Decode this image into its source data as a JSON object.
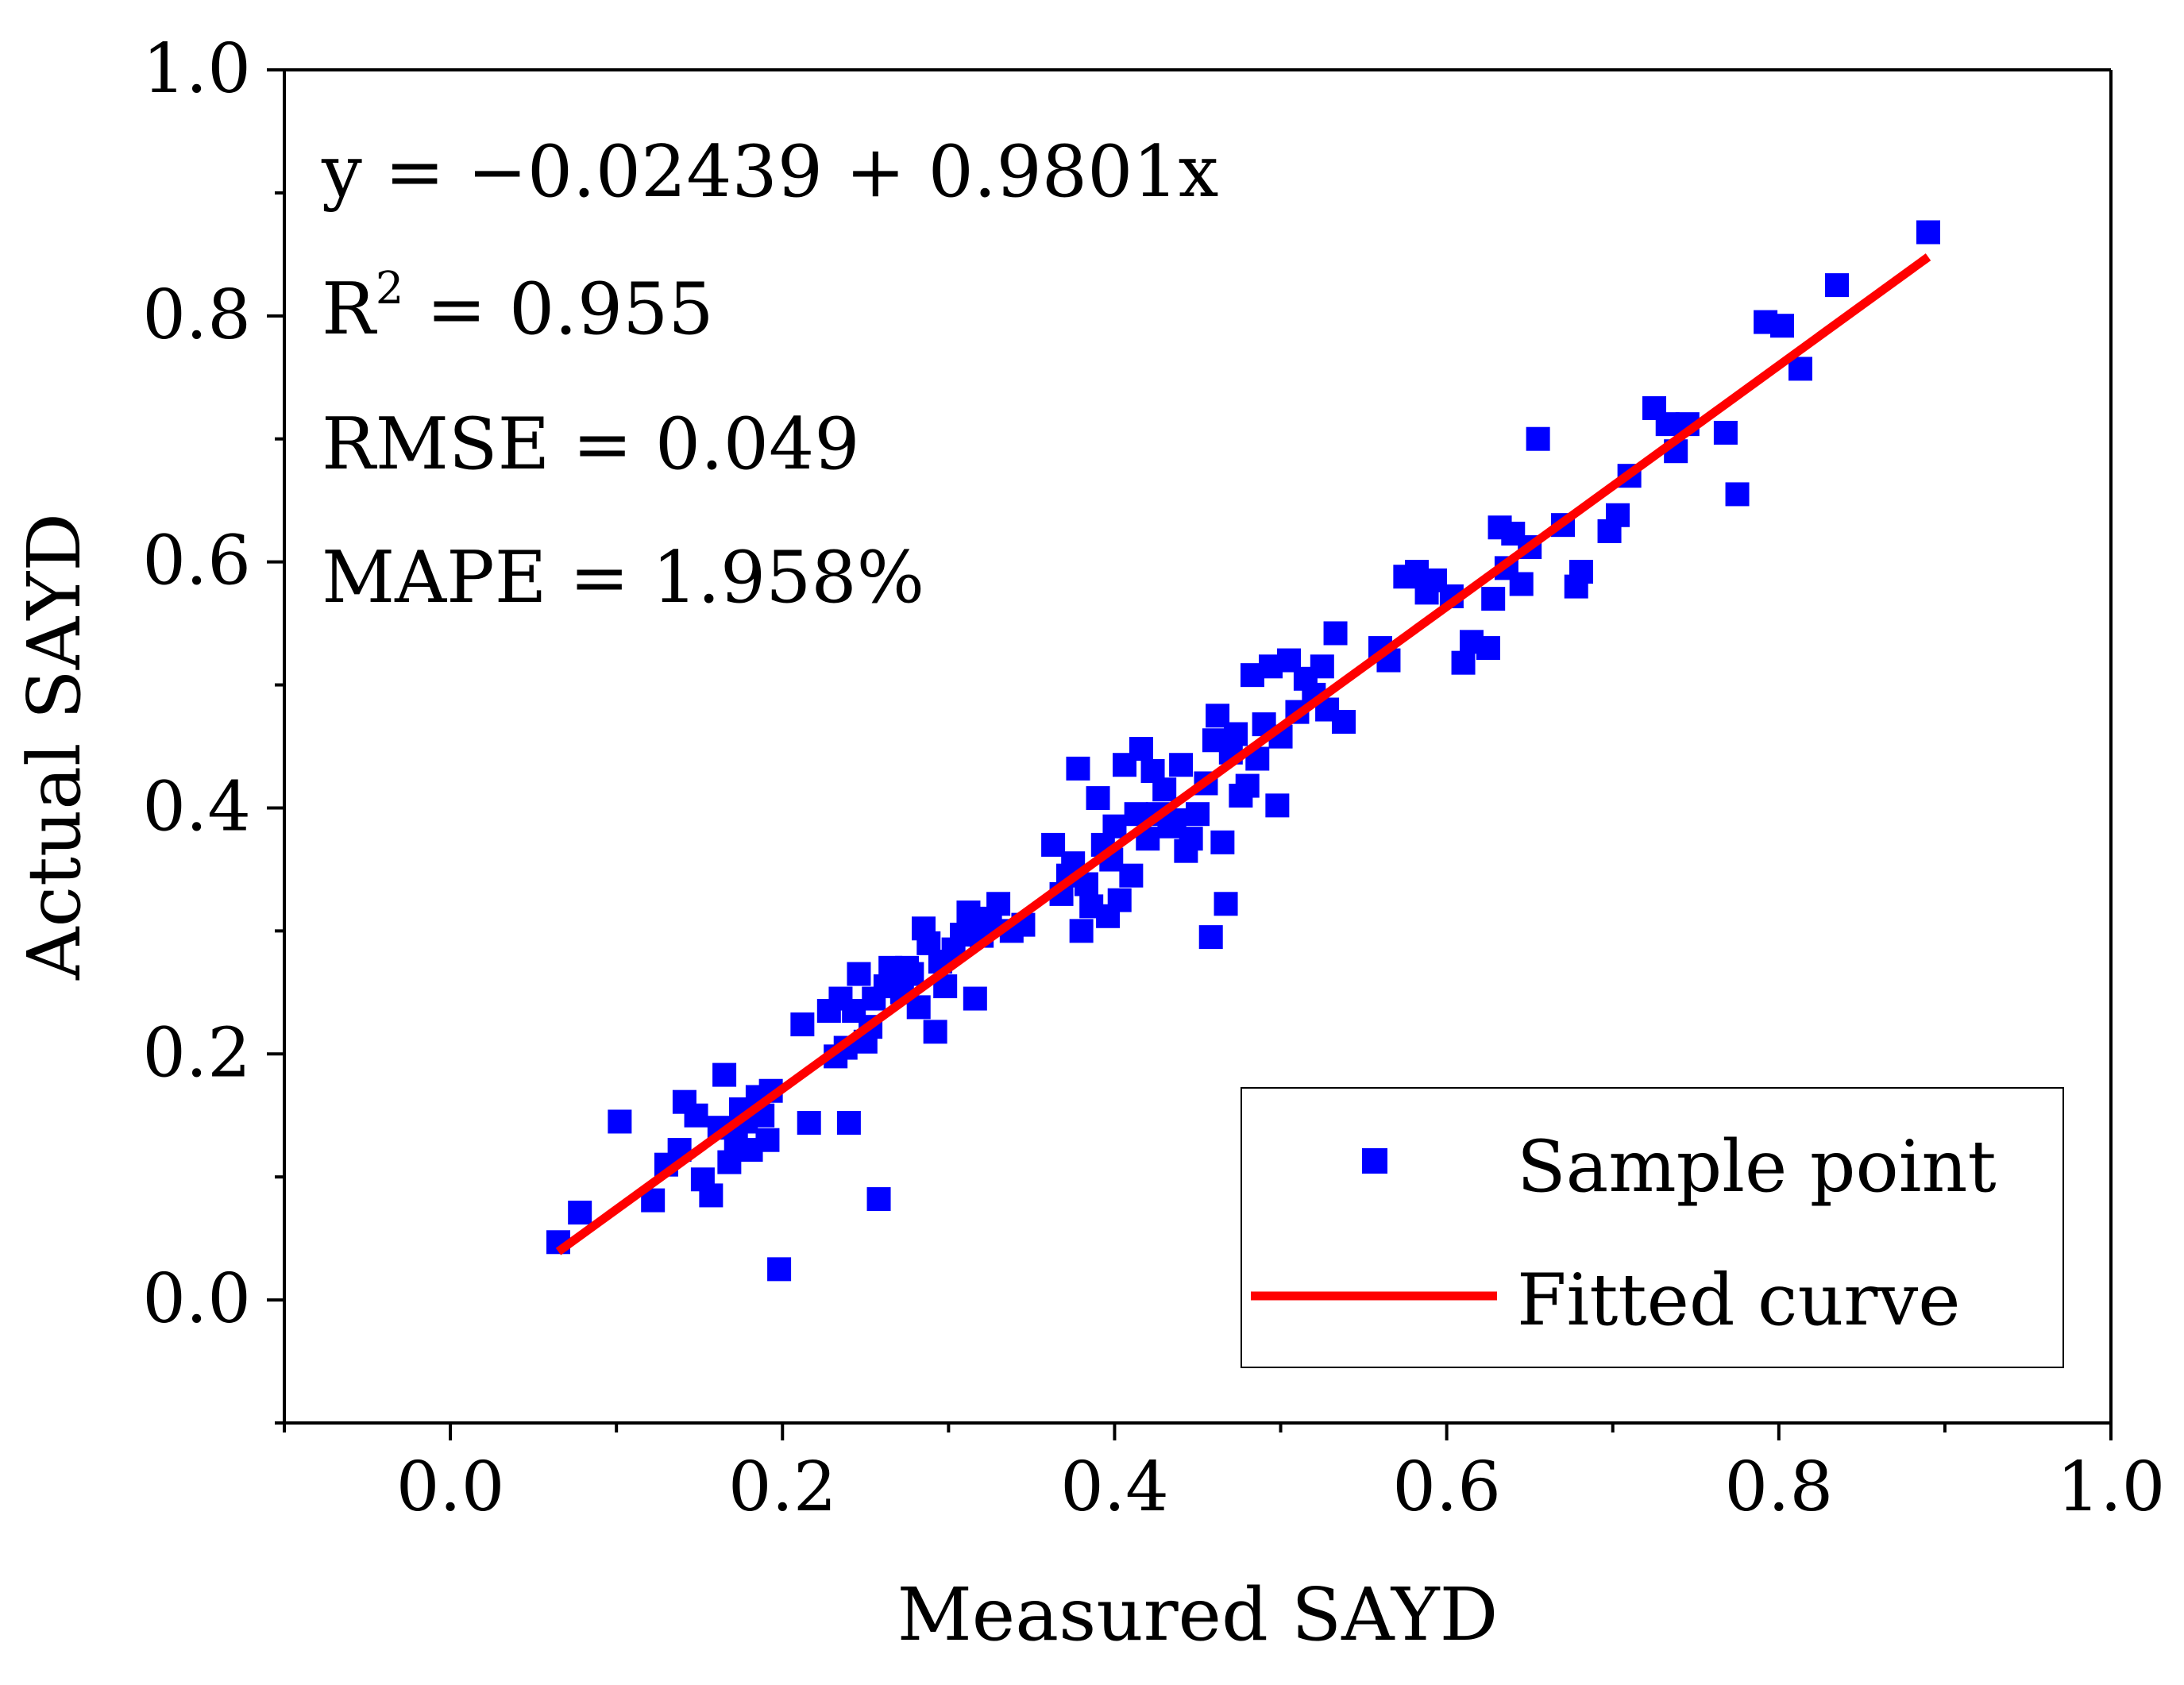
{
  "chart_data": {
    "type": "scatter",
    "title": "",
    "xlabel": "Measured SAYD",
    "ylabel": "Actual SAYD",
    "xlim": [
      -0.1,
      1.0
    ],
    "ylim": [
      -0.1,
      1.0
    ],
    "xticks": [
      "0.0",
      "0.2",
      "0.4",
      "0.6",
      "0.8",
      "1.0"
    ],
    "yticks": [
      "0.0",
      "0.2",
      "0.4",
      "0.6",
      "0.8",
      "1.0"
    ],
    "grid": false,
    "legend": {
      "position": "bottom-right",
      "items": [
        {
          "label": "Sample point",
          "marker": "square",
          "color": "#0000ff"
        },
        {
          "label": "Fitted curve",
          "marker": "line",
          "color": "#ff0000"
        }
      ]
    },
    "annotations": {
      "equation": "y = −0.02439 + 0.9801x",
      "r2_prefix": "R",
      "r2_sup": "2",
      "r2_value": " = 0.955",
      "rmse": "RMSE = 0.049",
      "mape": "MAPE = 1.958%"
    },
    "fit": {
      "intercept": -0.02439,
      "slope": 0.9801,
      "x_range": [
        0.065,
        0.89
      ],
      "color": "#ff0000"
    },
    "series": [
      {
        "name": "Sample point",
        "color": "#0000ff",
        "points": [
          [
            0.065,
            0.047
          ],
          [
            0.078,
            0.071
          ],
          [
            0.102,
            0.145
          ],
          [
            0.122,
            0.081
          ],
          [
            0.13,
            0.11
          ],
          [
            0.138,
            0.122
          ],
          [
            0.141,
            0.161
          ],
          [
            0.148,
            0.15
          ],
          [
            0.152,
            0.098
          ],
          [
            0.157,
            0.085
          ],
          [
            0.162,
            0.14
          ],
          [
            0.165,
            0.183
          ],
          [
            0.168,
            0.112
          ],
          [
            0.172,
            0.13
          ],
          [
            0.175,
            0.155
          ],
          [
            0.178,
            0.145
          ],
          [
            0.181,
            0.122
          ],
          [
            0.185,
            0.165
          ],
          [
            0.188,
            0.15
          ],
          [
            0.191,
            0.13
          ],
          [
            0.193,
            0.17
          ],
          [
            0.198,
            0.025
          ],
          [
            0.212,
            0.224
          ],
          [
            0.216,
            0.144
          ],
          [
            0.228,
            0.235
          ],
          [
            0.232,
            0.198
          ],
          [
            0.235,
            0.245
          ],
          [
            0.238,
            0.205
          ],
          [
            0.24,
            0.144
          ],
          [
            0.243,
            0.235
          ],
          [
            0.246,
            0.265
          ],
          [
            0.25,
            0.21
          ],
          [
            0.253,
            0.222
          ],
          [
            0.255,
            0.245
          ],
          [
            0.258,
            0.082
          ],
          [
            0.262,
            0.255
          ],
          [
            0.265,
            0.27
          ],
          [
            0.268,
            0.26
          ],
          [
            0.272,
            0.25
          ],
          [
            0.275,
            0.27
          ],
          [
            0.278,
            0.265
          ],
          [
            0.282,
            0.238
          ],
          [
            0.285,
            0.302
          ],
          [
            0.288,
            0.29
          ],
          [
            0.292,
            0.218
          ],
          [
            0.295,
            0.275
          ],
          [
            0.298,
            0.255
          ],
          [
            0.303,
            0.285
          ],
          [
            0.308,
            0.297
          ],
          [
            0.312,
            0.315
          ],
          [
            0.316,
            0.245
          ],
          [
            0.32,
            0.296
          ],
          [
            0.325,
            0.31
          ],
          [
            0.33,
            0.322
          ],
          [
            0.338,
            0.3
          ],
          [
            0.345,
            0.305
          ],
          [
            0.363,
            0.37
          ],
          [
            0.368,
            0.33
          ],
          [
            0.372,
            0.345
          ],
          [
            0.375,
            0.355
          ],
          [
            0.378,
            0.432
          ],
          [
            0.38,
            0.3
          ],
          [
            0.383,
            0.338
          ],
          [
            0.386,
            0.32
          ],
          [
            0.39,
            0.408
          ],
          [
            0.393,
            0.37
          ],
          [
            0.396,
            0.312
          ],
          [
            0.398,
            0.358
          ],
          [
            0.4,
            0.385
          ],
          [
            0.403,
            0.325
          ],
          [
            0.406,
            0.435
          ],
          [
            0.41,
            0.345
          ],
          [
            0.413,
            0.395
          ],
          [
            0.416,
            0.448
          ],
          [
            0.42,
            0.375
          ],
          [
            0.423,
            0.43
          ],
          [
            0.426,
            0.395
          ],
          [
            0.43,
            0.415
          ],
          [
            0.433,
            0.385
          ],
          [
            0.436,
            0.39
          ],
          [
            0.44,
            0.435
          ],
          [
            0.443,
            0.365
          ],
          [
            0.446,
            0.375
          ],
          [
            0.45,
            0.395
          ],
          [
            0.455,
            0.42
          ],
          [
            0.458,
            0.295
          ],
          [
            0.46,
            0.455
          ],
          [
            0.462,
            0.475
          ],
          [
            0.465,
            0.372
          ],
          [
            0.467,
            0.322
          ],
          [
            0.47,
            0.445
          ],
          [
            0.473,
            0.46
          ],
          [
            0.476,
            0.41
          ],
          [
            0.48,
            0.418
          ],
          [
            0.483,
            0.508
          ],
          [
            0.486,
            0.44
          ],
          [
            0.49,
            0.468
          ],
          [
            0.494,
            0.515
          ],
          [
            0.498,
            0.402
          ],
          [
            0.5,
            0.458
          ],
          [
            0.505,
            0.52
          ],
          [
            0.51,
            0.478
          ],
          [
            0.515,
            0.505
          ],
          [
            0.52,
            0.492
          ],
          [
            0.525,
            0.515
          ],
          [
            0.528,
            0.48
          ],
          [
            0.533,
            0.542
          ],
          [
            0.538,
            0.47
          ],
          [
            0.56,
            0.53
          ],
          [
            0.565,
            0.52
          ],
          [
            0.575,
            0.588
          ],
          [
            0.582,
            0.592
          ],
          [
            0.588,
            0.575
          ],
          [
            0.593,
            0.585
          ],
          [
            0.603,
            0.572
          ],
          [
            0.61,
            0.518
          ],
          [
            0.615,
            0.535
          ],
          [
            0.625,
            0.53
          ],
          [
            0.628,
            0.57
          ],
          [
            0.632,
            0.628
          ],
          [
            0.636,
            0.595
          ],
          [
            0.64,
            0.623
          ],
          [
            0.645,
            0.582
          ],
          [
            0.65,
            0.612
          ],
          [
            0.655,
            0.7
          ],
          [
            0.67,
            0.63
          ],
          [
            0.678,
            0.58
          ],
          [
            0.681,
            0.592
          ],
          [
            0.698,
            0.625
          ],
          [
            0.703,
            0.638
          ],
          [
            0.71,
            0.67
          ],
          [
            0.725,
            0.725
          ],
          [
            0.733,
            0.712
          ],
          [
            0.738,
            0.69
          ],
          [
            0.745,
            0.712
          ],
          [
            0.768,
            0.705
          ],
          [
            0.775,
            0.655
          ],
          [
            0.792,
            0.795
          ],
          [
            0.802,
            0.792
          ],
          [
            0.813,
            0.757
          ],
          [
            0.835,
            0.825
          ],
          [
            0.89,
            0.868
          ]
        ]
      }
    ]
  }
}
